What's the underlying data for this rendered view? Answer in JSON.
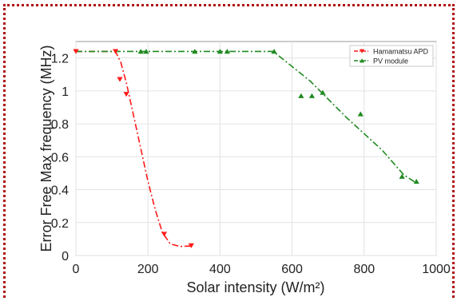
{
  "chart_data": {
    "type": "line",
    "title": "",
    "xlabel": "Solar intensity (W/m²)",
    "ylabel": "Error Free Max frequency (MHz)",
    "xlim": [
      0,
      1000
    ],
    "ylim": [
      0,
      1.3
    ],
    "xticks": [
      0,
      200,
      400,
      600,
      800,
      1000
    ],
    "yticks": [
      0,
      0.2,
      0.4,
      0.6,
      0.8,
      1,
      1.2
    ],
    "grid": true,
    "legend_position": "top-right",
    "series": [
      {
        "name": "Hamamatsu APD",
        "color": "#ff1a1a",
        "marker": "triangle-down",
        "points": [
          [
            0,
            1.24
          ],
          [
            110,
            1.24
          ],
          [
            122,
            1.07
          ],
          [
            140,
            0.98
          ],
          [
            245,
            0.13
          ],
          [
            320,
            0.06
          ]
        ],
        "fit": [
          [
            0,
            1.24
          ],
          [
            110,
            1.24
          ],
          [
            125,
            1.17
          ],
          [
            140,
            1.05
          ],
          [
            160,
            0.85
          ],
          [
            180,
            0.65
          ],
          [
            200,
            0.45
          ],
          [
            220,
            0.28
          ],
          [
            240,
            0.14
          ],
          [
            262,
            0.07
          ],
          [
            290,
            0.055
          ],
          [
            320,
            0.058
          ]
        ]
      },
      {
        "name": "PV module",
        "color": "#1e8a1e",
        "marker": "triangle-up",
        "points": [
          [
            180,
            1.24
          ],
          [
            195,
            1.24
          ],
          [
            330,
            1.24
          ],
          [
            400,
            1.24
          ],
          [
            420,
            1.24
          ],
          [
            550,
            1.24
          ],
          [
            625,
            0.97
          ],
          [
            655,
            0.97
          ],
          [
            685,
            0.99
          ],
          [
            790,
            0.86
          ],
          [
            905,
            0.48
          ],
          [
            945,
            0.45
          ]
        ],
        "fit": [
          [
            0,
            1.24
          ],
          [
            548,
            1.24
          ],
          [
            650,
            1.06
          ],
          [
            750,
            0.84
          ],
          [
            850,
            0.64
          ],
          [
            910,
            0.49
          ],
          [
            945,
            0.44
          ]
        ]
      }
    ]
  }
}
